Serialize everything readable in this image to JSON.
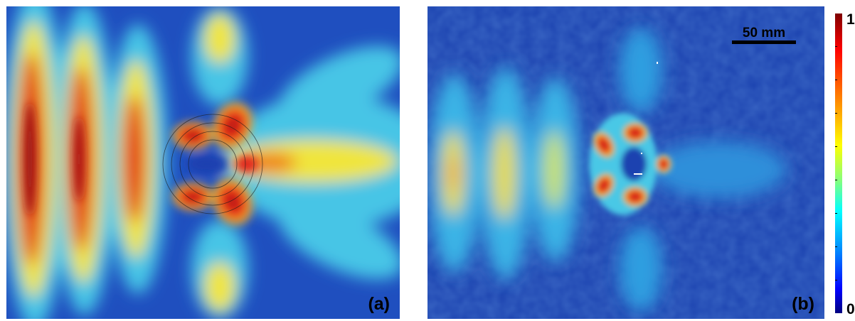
{
  "panel_a": {
    "label": "(a)"
  },
  "panel_b": {
    "label": "(b)",
    "scalebar_label": "50 mm"
  },
  "colorbar": {
    "max_label": "1",
    "min_label": "0"
  },
  "colors": {
    "background": "#1a3aa8",
    "low": "#1e49b8",
    "mid": "#3fc3e8",
    "yellow": "#f3e83a",
    "high": "#e62a1a",
    "peak": "#b01515"
  }
}
